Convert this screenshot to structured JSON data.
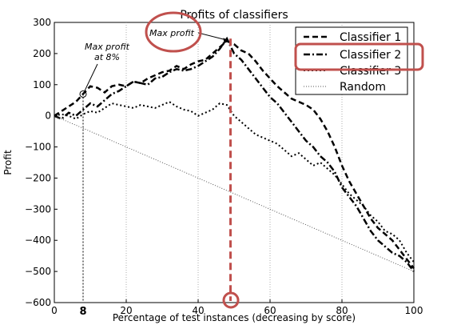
{
  "chart_data": {
    "type": "line",
    "title": "Profits of classifiers",
    "xlabel": "Percentage of test instances (decreasing by score)",
    "ylabel": "Profit",
    "xlim": [
      0,
      100
    ],
    "ylim": [
      -600,
      300
    ],
    "xticks": [
      "0",
      "20",
      "40",
      "60",
      "80",
      "100"
    ],
    "yticks": [
      "300",
      "200",
      "100",
      "0",
      "−100",
      "−200",
      "−300",
      "−400",
      "−500",
      "−600"
    ],
    "grid": "vertical",
    "legend_position": "top-right",
    "series": [
      {
        "name": "Classifier 1",
        "style": "dashed",
        "x": [
          0,
          2,
          4,
          6,
          8,
          10,
          12,
          14,
          16,
          18,
          20,
          22,
          24,
          26,
          28,
          30,
          32,
          34,
          36,
          38,
          40,
          42,
          44,
          46,
          48,
          50,
          52,
          54,
          56,
          58,
          60,
          62,
          64,
          66,
          68,
          70,
          72,
          74,
          76,
          78,
          80,
          82,
          84,
          86,
          88,
          90,
          92,
          94,
          96,
          98,
          100
        ],
        "values": [
          0,
          15,
          30,
          45,
          70,
          95,
          90,
          75,
          95,
          100,
          95,
          110,
          105,
          120,
          130,
          140,
          145,
          160,
          150,
          165,
          175,
          180,
          200,
          220,
          240,
          230,
          210,
          200,
          175,
          145,
          120,
          95,
          75,
          55,
          45,
          35,
          20,
          -10,
          -50,
          -100,
          -160,
          -210,
          -250,
          -290,
          -330,
          -360,
          -380,
          -400,
          -430,
          -460,
          -490
        ]
      },
      {
        "name": "Classifier 2",
        "style": "dash-dot",
        "x": [
          0,
          2,
          4,
          6,
          8,
          10,
          12,
          14,
          16,
          18,
          20,
          22,
          24,
          26,
          28,
          30,
          32,
          34,
          36,
          38,
          40,
          42,
          44,
          46,
          48,
          50,
          52,
          54,
          56,
          58,
          60,
          62,
          64,
          66,
          68,
          70,
          72,
          74,
          76,
          78,
          80,
          82,
          84,
          86,
          88,
          90,
          92,
          94,
          96,
          98,
          100
        ],
        "values": [
          0,
          -10,
          10,
          0,
          20,
          40,
          30,
          50,
          70,
          80,
          95,
          110,
          105,
          100,
          120,
          125,
          140,
          150,
          145,
          150,
          160,
          175,
          190,
          215,
          248,
          200,
          180,
          150,
          120,
          90,
          60,
          40,
          10,
          -20,
          -50,
          -80,
          -100,
          -130,
          -150,
          -180,
          -230,
          -260,
          -290,
          -330,
          -370,
          -400,
          -420,
          -440,
          -450,
          -470,
          -500
        ]
      },
      {
        "name": "Classifier 3",
        "style": "dotted",
        "x": [
          0,
          2,
          4,
          6,
          8,
          10,
          12,
          14,
          16,
          18,
          20,
          22,
          24,
          26,
          28,
          30,
          32,
          34,
          36,
          38,
          40,
          42,
          44,
          46,
          48,
          50,
          52,
          54,
          56,
          58,
          60,
          62,
          64,
          66,
          68,
          70,
          72,
          74,
          76,
          78,
          80,
          82,
          84,
          86,
          88,
          90,
          92,
          94,
          96,
          98,
          100
        ],
        "values": [
          0,
          5,
          0,
          -10,
          5,
          15,
          10,
          25,
          40,
          35,
          30,
          25,
          35,
          30,
          25,
          35,
          45,
          30,
          20,
          15,
          0,
          10,
          20,
          40,
          35,
          0,
          -20,
          -40,
          -60,
          -70,
          -80,
          -90,
          -110,
          -130,
          -120,
          -140,
          -160,
          -150,
          -170,
          -190,
          -220,
          -250,
          -270,
          -290,
          -320,
          -340,
          -370,
          -380,
          -400,
          -440,
          -470
        ]
      },
      {
        "name": "Random",
        "style": "fine-dotted",
        "x": [
          0,
          100
        ],
        "values": [
          0,
          -500
        ]
      }
    ],
    "annotations": [
      {
        "text_lines": [
          "Max profit",
          "at 8%"
        ],
        "x": 8,
        "y": 70
      },
      {
        "text_lines": [
          "Max profit"
        ],
        "x": 49,
        "y": 248
      }
    ],
    "highlights": {
      "vertical_line_x": 8,
      "vertical_line_label": "8",
      "red_dashed_line_x": 49,
      "red_color": "#c0504d"
    }
  }
}
